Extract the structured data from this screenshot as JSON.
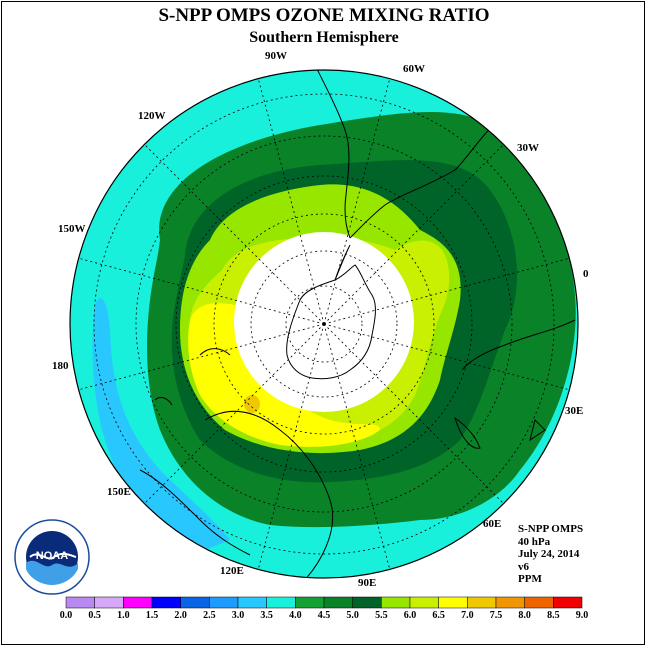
{
  "title": "S-NPP OMPS OZONE MIXING RATIO",
  "subtitle": "Southern Hemisphere",
  "longitude_labels": [
    "90W",
    "60W",
    "120W",
    "30W",
    "150W",
    "0",
    "180",
    "30E",
    "150E",
    "60E",
    "120E",
    "90E"
  ],
  "info": {
    "instrument": "S-NPP OMPS",
    "pressure": "40 hPa",
    "date": "July 24, 2014",
    "version": "v6",
    "units": "PPM"
  },
  "logo_text": "NOAA",
  "colorbar": {
    "ticks": [
      "0.0",
      "0.5",
      "1.0",
      "1.5",
      "2.0",
      "2.5",
      "3.0",
      "3.5",
      "4.0",
      "4.5",
      "5.0",
      "5.5",
      "6.0",
      "6.5",
      "7.0",
      "7.5",
      "8.0",
      "8.5",
      "9.0"
    ],
    "colors": [
      "#b889f0",
      "#d8a8f8",
      "#ff00ff",
      "#0000ff",
      "#0a64e6",
      "#1e9bff",
      "#28c8ff",
      "#18f0dc",
      "#14a032",
      "#0a8228",
      "#006428",
      "#96e600",
      "#c8f000",
      "#ffff00",
      "#f0c800",
      "#f09600",
      "#f06400",
      "#f00000",
      "#8c5a3c"
    ]
  },
  "map": {
    "background_color": "#18f0dc",
    "no_data_color": "#ffffff"
  }
}
